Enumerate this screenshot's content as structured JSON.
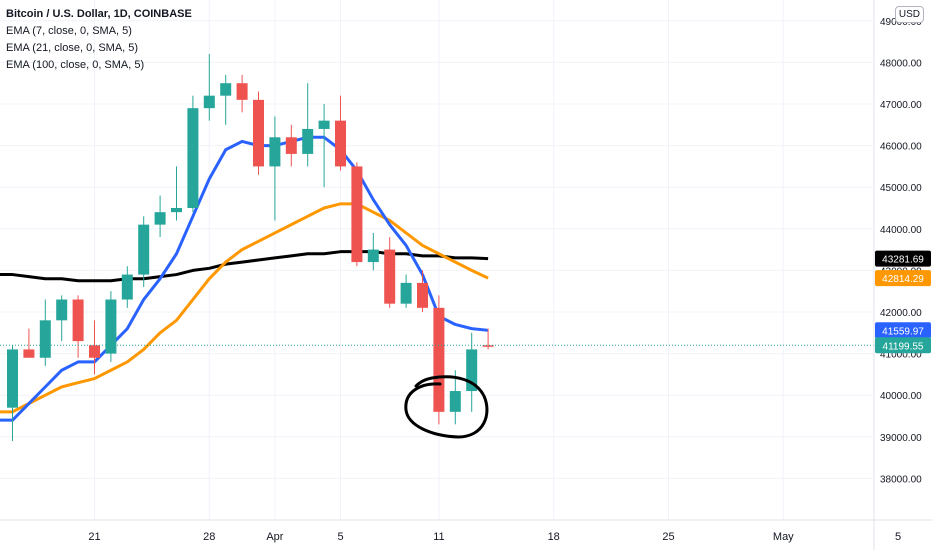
{
  "legend": {
    "title": "Bitcoin / U.S. Dollar, 1D, COINBASE",
    "ema7": "EMA (7, close, 0, SMA, 5)",
    "ema21": "EMA (21, close, 0, SMA, 5)",
    "ema100": "EMA (100, close, 0, SMA, 5)"
  },
  "currency_button": "USD",
  "chart_data": {
    "type": "candlestick",
    "ylim": [
      37000,
      49500
    ],
    "y_ticks": [
      38000,
      39000,
      40000,
      41000,
      42000,
      43000,
      44000,
      45000,
      46000,
      47000,
      48000,
      49000
    ],
    "x_ticks": [
      "21",
      "28",
      "Apr",
      "5",
      "11",
      "18",
      "25",
      "May",
      "5"
    ],
    "colors": {
      "up": "#26a69a",
      "down": "#ef5350",
      "ema7": "#2962ff",
      "ema21": "#ff9800",
      "ema100": "#000000"
    },
    "candles": [
      {
        "o": 39700,
        "h": 41200,
        "l": 38900,
        "c": 41100
      },
      {
        "o": 41100,
        "h": 41600,
        "l": 40900,
        "c": 40900
      },
      {
        "o": 40900,
        "h": 42300,
        "l": 40700,
        "c": 41800
      },
      {
        "o": 41800,
        "h": 42400,
        "l": 41300,
        "c": 42300
      },
      {
        "o": 42300,
        "h": 42400,
        "l": 40900,
        "c": 41300
      },
      {
        "o": 41200,
        "h": 41800,
        "l": 40500,
        "c": 40900
      },
      {
        "o": 41000,
        "h": 42500,
        "l": 40800,
        "c": 42300
      },
      {
        "o": 42300,
        "h": 43100,
        "l": 42100,
        "c": 42900
      },
      {
        "o": 42900,
        "h": 44300,
        "l": 42600,
        "c": 44100
      },
      {
        "o": 44100,
        "h": 44800,
        "l": 43800,
        "c": 44400
      },
      {
        "o": 44400,
        "h": 45500,
        "l": 44200,
        "c": 44500
      },
      {
        "o": 44500,
        "h": 47200,
        "l": 44400,
        "c": 46900
      },
      {
        "o": 46900,
        "h": 48200,
        "l": 46600,
        "c": 47200
      },
      {
        "o": 47200,
        "h": 47700,
        "l": 46500,
        "c": 47500
      },
      {
        "o": 47500,
        "h": 47700,
        "l": 46800,
        "c": 47100
      },
      {
        "o": 47100,
        "h": 47300,
        "l": 45300,
        "c": 45500
      },
      {
        "o": 45500,
        "h": 46700,
        "l": 44200,
        "c": 46200
      },
      {
        "o": 46200,
        "h": 46500,
        "l": 45500,
        "c": 45800
      },
      {
        "o": 45800,
        "h": 47500,
        "l": 45500,
        "c": 46400
      },
      {
        "o": 46400,
        "h": 47000,
        "l": 45000,
        "c": 46600
      },
      {
        "o": 46600,
        "h": 47200,
        "l": 45400,
        "c": 45500
      },
      {
        "o": 45500,
        "h": 45600,
        "l": 43100,
        "c": 43200
      },
      {
        "o": 43200,
        "h": 43900,
        "l": 43000,
        "c": 43500
      },
      {
        "o": 43500,
        "h": 43800,
        "l": 42100,
        "c": 42200
      },
      {
        "o": 42200,
        "h": 42900,
        "l": 42100,
        "c": 42700
      },
      {
        "o": 42700,
        "h": 43000,
        "l": 42000,
        "c": 42100
      },
      {
        "o": 42100,
        "h": 42400,
        "l": 39300,
        "c": 39600
      },
      {
        "o": 39600,
        "h": 40600,
        "l": 39300,
        "c": 40100
      },
      {
        "o": 40100,
        "h": 41500,
        "l": 39600,
        "c": 41100
      },
      {
        "o": 41200,
        "h": 41600,
        "l": 41100,
        "c": 41199.55
      }
    ],
    "ema7": [
      39400,
      39800,
      40200,
      40600,
      40800,
      40800,
      41200,
      41600,
      42300,
      42800,
      43400,
      44300,
      45200,
      45900,
      46100,
      46000,
      46000,
      46100,
      46200,
      46200,
      45900,
      45400,
      44700,
      44100,
      43600,
      42900,
      41900,
      41700,
      41600,
      41559.97
    ],
    "ema21": [
      39600,
      39800,
      40000,
      40200,
      40300,
      40400,
      40600,
      40800,
      41100,
      41500,
      41800,
      42300,
      42800,
      43200,
      43500,
      43700,
      43900,
      44100,
      44300,
      44500,
      44600,
      44600,
      44400,
      44200,
      43900,
      43600,
      43400,
      43200,
      43000,
      42814.29
    ],
    "ema100": [
      42900,
      42850,
      42800,
      42800,
      42750,
      42750,
      42750,
      42800,
      42800,
      42850,
      42900,
      43000,
      43050,
      43150,
      43200,
      43250,
      43300,
      43350,
      43400,
      43400,
      43450,
      43450,
      43450,
      43400,
      43400,
      43350,
      43350,
      43300,
      43300,
      43281.69
    ],
    "price_labels": [
      {
        "series": "ema100",
        "value": "43281.69"
      },
      {
        "series": "ema21",
        "value": "42814.29"
      },
      {
        "series": "ema7",
        "value": "41559.97"
      },
      {
        "series": "last",
        "value": "41199.55"
      }
    ],
    "last_price": 41199.55,
    "annotation": "hand-drawn circle around 11 Apr candles"
  }
}
